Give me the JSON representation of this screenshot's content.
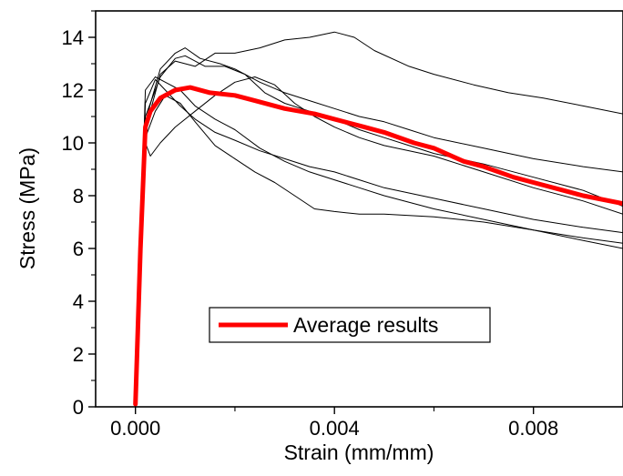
{
  "chart_data": {
    "type": "line",
    "title": "",
    "xlabel": "Strain (mm/mm)",
    "ylabel": "Stress (MPa)",
    "xlim": [
      -0.0008,
      0.0098
    ],
    "ylim": [
      0,
      15
    ],
    "x_ticks": [
      0.0,
      0.004,
      0.008
    ],
    "x_tick_labels": [
      "0.000",
      "0.004",
      "0.008"
    ],
    "y_ticks": [
      0,
      2,
      4,
      6,
      8,
      10,
      12,
      14
    ],
    "y_tick_labels": [
      "0",
      "2",
      "4",
      "6",
      "8",
      "10",
      "12",
      "14"
    ],
    "grid": false,
    "legend": {
      "position": "lower-center",
      "entries": [
        "Average results"
      ]
    },
    "colors": {
      "average": "#ff0000",
      "specimens": "#000000"
    },
    "series": [
      {
        "name": "Average results",
        "values": [
          [
            0,
            0.1
          ],
          [
            0.0001,
            6
          ],
          [
            0.0002,
            10.6
          ],
          [
            0.0003,
            11.2
          ],
          [
            0.0005,
            11.7
          ],
          [
            0.0008,
            12.0
          ],
          [
            0.0011,
            12.1
          ],
          [
            0.0015,
            11.9
          ],
          [
            0.002,
            11.8
          ],
          [
            0.0024,
            11.6
          ],
          [
            0.003,
            11.3
          ],
          [
            0.0036,
            11.1
          ],
          [
            0.004,
            10.9
          ],
          [
            0.0046,
            10.6
          ],
          [
            0.005,
            10.4
          ],
          [
            0.0056,
            10.0
          ],
          [
            0.006,
            9.8
          ],
          [
            0.0066,
            9.3
          ],
          [
            0.007,
            9.1
          ],
          [
            0.0076,
            8.7
          ],
          [
            0.008,
            8.5
          ],
          [
            0.0086,
            8.2
          ],
          [
            0.009,
            8.0
          ],
          [
            0.0098,
            7.7
          ]
        ]
      },
      {
        "values": [
          [
            0,
            0.1
          ],
          [
            0.0002,
            10.5
          ],
          [
            0.0005,
            12.6
          ],
          [
            0.0008,
            13.1
          ],
          [
            0.0012,
            12.9
          ],
          [
            0.0016,
            13.4
          ],
          [
            0.002,
            13.4
          ],
          [
            0.0025,
            13.6
          ],
          [
            0.003,
            13.9
          ],
          [
            0.0035,
            14.0
          ],
          [
            0.004,
            14.2
          ],
          [
            0.0044,
            14.0
          ],
          [
            0.0048,
            13.5
          ],
          [
            0.0055,
            12.9
          ],
          [
            0.006,
            12.6
          ],
          [
            0.0068,
            12.2
          ],
          [
            0.0075,
            11.9
          ],
          [
            0.0082,
            11.7
          ],
          [
            0.009,
            11.4
          ],
          [
            0.0098,
            11.1
          ]
        ]
      },
      {
        "values": [
          [
            0,
            0.1
          ],
          [
            0.0002,
            10.8
          ],
          [
            0.0005,
            12.8
          ],
          [
            0.0008,
            13.4
          ],
          [
            0.001,
            13.6
          ],
          [
            0.0013,
            13.2
          ],
          [
            0.0017,
            13.0
          ],
          [
            0.002,
            12.8
          ],
          [
            0.0025,
            12.3
          ],
          [
            0.003,
            11.9
          ],
          [
            0.0035,
            11.6
          ],
          [
            0.004,
            11.3
          ],
          [
            0.0045,
            11.0
          ],
          [
            0.005,
            10.8
          ],
          [
            0.0055,
            10.5
          ],
          [
            0.006,
            10.2
          ],
          [
            0.007,
            9.8
          ],
          [
            0.008,
            9.4
          ],
          [
            0.009,
            9.1
          ],
          [
            0.0098,
            8.9
          ]
        ]
      },
      {
        "values": [
          [
            0,
            0.1
          ],
          [
            0.0002,
            11.0
          ],
          [
            0.0005,
            12.5
          ],
          [
            0.0008,
            13.2
          ],
          [
            0.001,
            13.3
          ],
          [
            0.0014,
            12.9
          ],
          [
            0.0018,
            12.9
          ],
          [
            0.0022,
            12.6
          ],
          [
            0.0026,
            11.9
          ],
          [
            0.003,
            11.5
          ],
          [
            0.0035,
            11.2
          ],
          [
            0.004,
            10.9
          ],
          [
            0.0045,
            10.5
          ],
          [
            0.005,
            10.2
          ],
          [
            0.0055,
            9.9
          ],
          [
            0.006,
            9.6
          ],
          [
            0.007,
            9.2
          ],
          [
            0.008,
            8.7
          ],
          [
            0.009,
            8.2
          ],
          [
            0.0098,
            7.6
          ]
        ]
      },
      {
        "values": [
          [
            0,
            0.1
          ],
          [
            0.0002,
            10.0
          ],
          [
            0.0003,
            9.5
          ],
          [
            0.0005,
            10.0
          ],
          [
            0.0008,
            10.6
          ],
          [
            0.0012,
            11.2
          ],
          [
            0.0016,
            11.8
          ],
          [
            0.002,
            12.3
          ],
          [
            0.0024,
            12.5
          ],
          [
            0.0028,
            12.2
          ],
          [
            0.0032,
            11.5
          ],
          [
            0.0036,
            11.0
          ],
          [
            0.004,
            10.6
          ],
          [
            0.0045,
            10.2
          ],
          [
            0.005,
            9.9
          ],
          [
            0.006,
            9.5
          ],
          [
            0.007,
            8.9
          ],
          [
            0.008,
            8.3
          ],
          [
            0.009,
            7.8
          ],
          [
            0.0098,
            7.3
          ]
        ]
      },
      {
        "values": [
          [
            0,
            0.1
          ],
          [
            0.0002,
            11.5
          ],
          [
            0.0004,
            12.4
          ],
          [
            0.0006,
            12.0
          ],
          [
            0.0009,
            11.4
          ],
          [
            0.0012,
            10.9
          ],
          [
            0.0016,
            10.4
          ],
          [
            0.002,
            10.1
          ],
          [
            0.0025,
            9.7
          ],
          [
            0.003,
            9.4
          ],
          [
            0.0035,
            9.1
          ],
          [
            0.004,
            8.9
          ],
          [
            0.0045,
            8.6
          ],
          [
            0.005,
            8.3
          ],
          [
            0.006,
            7.9
          ],
          [
            0.007,
            7.5
          ],
          [
            0.008,
            7.1
          ],
          [
            0.009,
            6.8
          ],
          [
            0.0098,
            6.6
          ]
        ]
      },
      {
        "values": [
          [
            0,
            0.1
          ],
          [
            0.0002,
            10.2
          ],
          [
            0.0004,
            11.2
          ],
          [
            0.0006,
            11.8
          ],
          [
            0.0009,
            11.5
          ],
          [
            0.0012,
            10.8
          ],
          [
            0.0016,
            9.9
          ],
          [
            0.002,
            9.4
          ],
          [
            0.0024,
            8.9
          ],
          [
            0.0028,
            8.5
          ],
          [
            0.0032,
            8.0
          ],
          [
            0.0036,
            7.5
          ],
          [
            0.004,
            7.4
          ],
          [
            0.0045,
            7.3
          ],
          [
            0.005,
            7.3
          ],
          [
            0.006,
            7.2
          ],
          [
            0.007,
            7.0
          ],
          [
            0.008,
            6.7
          ],
          [
            0.009,
            6.3
          ],
          [
            0.0098,
            6.0
          ]
        ]
      },
      {
        "values": [
          [
            0,
            0.1
          ],
          [
            0.0002,
            12.0
          ],
          [
            0.0004,
            12.5
          ],
          [
            0.0006,
            12.3
          ],
          [
            0.0009,
            12.0
          ],
          [
            0.0012,
            11.4
          ],
          [
            0.0016,
            10.9
          ],
          [
            0.002,
            10.5
          ],
          [
            0.0025,
            9.8
          ],
          [
            0.003,
            9.3
          ],
          [
            0.0035,
            8.9
          ],
          [
            0.004,
            8.6
          ],
          [
            0.0045,
            8.3
          ],
          [
            0.005,
            8.0
          ],
          [
            0.006,
            7.5
          ],
          [
            0.007,
            7.1
          ],
          [
            0.008,
            6.7
          ],
          [
            0.009,
            6.4
          ],
          [
            0.0098,
            6.2
          ]
        ]
      }
    ]
  }
}
